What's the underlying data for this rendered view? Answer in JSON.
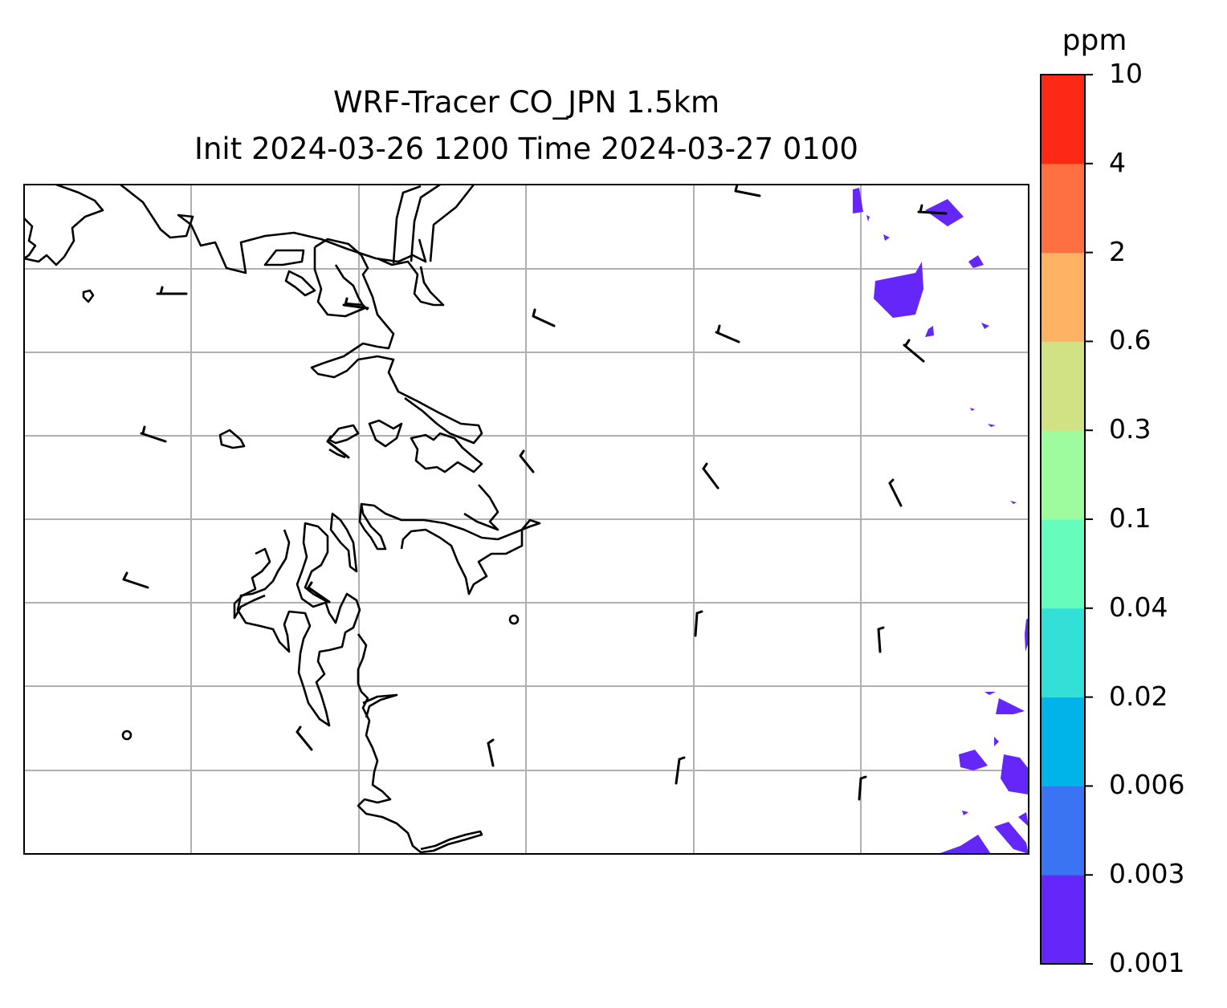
{
  "title": {
    "line1": "WRF-Tracer CO_JPN 1.5km",
    "line2": "Init 2024-03-26 1200 Time 2024-03-27 0100"
  },
  "colorbar": {
    "unit": "ppm",
    "levels": [
      "0.001",
      "0.003",
      "0.006",
      "0.02",
      "0.04",
      "0.1",
      "0.3",
      "0.6",
      "2",
      "4",
      "10"
    ],
    "colors": [
      "#6426f9",
      "#3a74f3",
      "#00b4ea",
      "#33e0d8",
      "#66fcbc",
      "#9efc9e",
      "#d1e284",
      "#feb364",
      "#fe7042",
      "#fe2817"
    ]
  },
  "map": {
    "graticule_color": "#b0b0b0",
    "tracer_fill_color": "#6426f9",
    "wind_barbs": "wind-barb-icon"
  }
}
